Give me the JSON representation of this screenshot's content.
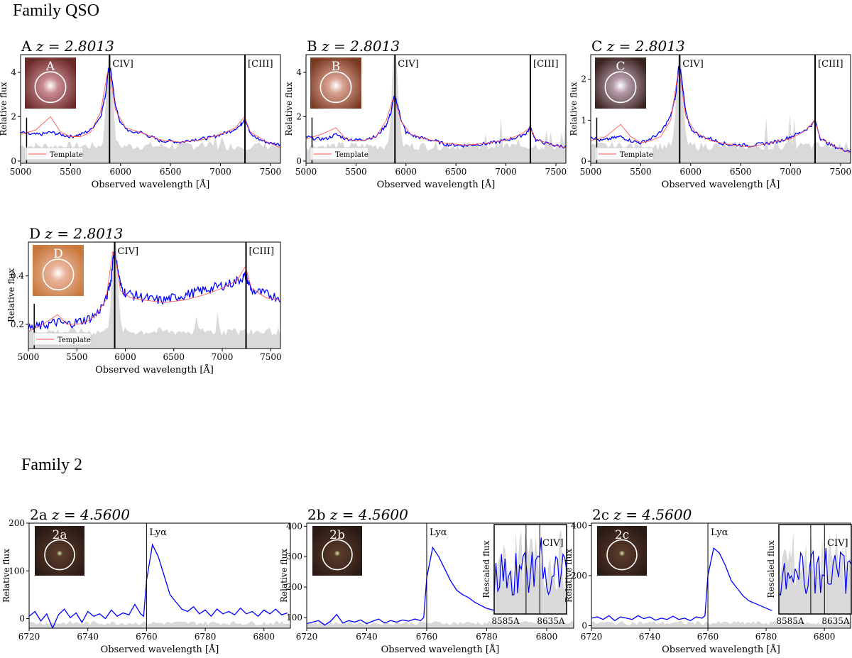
{
  "families": [
    {
      "title": "Family QSO"
    },
    {
      "title": "Family 2"
    }
  ],
  "panels": [
    {
      "label": "A $z = 2.8013$",
      "label_text": "A",
      "z_text": "z = 2.8013",
      "thumb": "A",
      "thumb_colors": [
        "#6a2a28",
        "#c88a90",
        "#ffffff"
      ],
      "lines": [
        {
          "name": "CIV]",
          "x": 5890
        },
        {
          "name": "[CIII]",
          "x": 7245
        }
      ],
      "legend": "Template",
      "xlabel": "Observed wavelength [Å]",
      "ylabel": "Relative flux"
    },
    {
      "label": "B",
      "label_text": "B",
      "z_text": "z = 2.8013",
      "thumb": "B",
      "thumb_colors": [
        "#7a3a22",
        "#d8a090",
        "#ffffff"
      ],
      "lines": [
        {
          "name": "CIV]",
          "x": 5890
        },
        {
          "name": "[CIII]",
          "x": 7245
        }
      ],
      "legend": "Template",
      "xlabel": "Observed wavelength [Å]",
      "ylabel": "Relative flux"
    },
    {
      "label": "C",
      "label_text": "C",
      "z_text": "z = 2.8013",
      "thumb": "C",
      "thumb_colors": [
        "#3a2420",
        "#b49aa8",
        "#ffffff"
      ],
      "lines": [
        {
          "name": "CIV]",
          "x": 5890
        },
        {
          "name": "[CIII]",
          "x": 7245
        }
      ],
      "legend": "Template",
      "xlabel": "Observed wavelength [Å]",
      "ylabel": "Relative flux"
    },
    {
      "label": "D",
      "label_text": "D",
      "z_text": "z = 2.8013",
      "thumb": "D",
      "thumb_colors": [
        "#c8773a",
        "#e8b39a",
        "#ffffff"
      ],
      "lines": [
        {
          "name": "CIV]",
          "x": 5890
        },
        {
          "name": "[CIII]",
          "x": 7245
        }
      ],
      "legend": "Template",
      "xlabel": "Observed wavelength [Å]",
      "ylabel": "Relative flux"
    },
    {
      "label": "2a",
      "label_text": "2a",
      "z_text": "z = 4.5600",
      "thumb": "2a",
      "thumb_colors": [
        "#2a1a14",
        "#5a3a2a",
        "#c8e8a0"
      ],
      "lines": [
        {
          "name": "Lyα",
          "x": 6760
        }
      ],
      "xlabel": "Observed wavelength [Å]",
      "ylabel": "Relative flux"
    },
    {
      "label": "2b",
      "label_text": "2b",
      "z_text": "z = 4.5600",
      "thumb": "2b",
      "thumb_colors": [
        "#2a1a14",
        "#5a3a2a",
        "#d8f0a0"
      ],
      "lines": [
        {
          "name": "Lyα",
          "x": 6760
        }
      ],
      "inset": {
        "ylabel": "Rescaled flux",
        "line": "CIV]",
        "ticks": [
          "8585A",
          "8635A"
        ]
      },
      "xlabel": "Observed wavelength [Å]",
      "ylabel": "Relative flux"
    },
    {
      "label": "2c",
      "label_text": "2c",
      "z_text": "z = 4.5600",
      "thumb": "2c",
      "thumb_colors": [
        "#2a1a14",
        "#5a3a2a",
        "#d8f0a0"
      ],
      "lines": [
        {
          "name": "Lyα",
          "x": 6760
        }
      ],
      "inset": {
        "ylabel": "Rescaled flux",
        "line": "CIV]",
        "ticks": [
          "8585A",
          "8635A"
        ]
      },
      "xlabel": "Observed wavelength [Å]",
      "ylabel": "Relative flux"
    }
  ],
  "chart_data": [
    {
      "type": "line",
      "panel": "A",
      "title": "A z = 2.8013",
      "xlim": [
        5000,
        7600
      ],
      "ylim": [
        -0.1,
        4.8
      ],
      "xticks": [
        5000,
        5500,
        6000,
        6500,
        7000,
        7500
      ],
      "yticks": [
        0,
        2,
        4
      ],
      "xlabel": "Observed wavelength [Å]",
      "ylabel": "Relative flux",
      "legend": {
        "entries": [
          "Template"
        ],
        "position": "lower-left"
      },
      "series": [
        {
          "name": "",
          "color": "#0000ff",
          "x": [
            5000,
            5100,
            5200,
            5300,
            5400,
            5500,
            5600,
            5700,
            5800,
            5850,
            5880,
            5900,
            5950,
            6000,
            6100,
            6200,
            6300,
            6400,
            6500,
            6600,
            6700,
            6800,
            6900,
            7000,
            7100,
            7200,
            7245,
            7300,
            7400,
            7500,
            7600
          ],
          "y": [
            1.3,
            1.2,
            1.2,
            1.3,
            1.2,
            1.1,
            1.2,
            1.4,
            2.0,
            3.0,
            4.2,
            4.1,
            2.5,
            1.7,
            1.3,
            1.3,
            1.1,
            0.9,
            0.9,
            0.85,
            0.95,
            1.0,
            1.05,
            1.2,
            1.35,
            1.6,
            1.95,
            1.2,
            0.95,
            0.8,
            0.75
          ]
        },
        {
          "name": "Template",
          "color": "#ff5555",
          "x": [
            5000,
            5150,
            5300,
            5400,
            5500,
            5600,
            5700,
            5800,
            5870,
            5900,
            5950,
            6050,
            6200,
            6400,
            6600,
            6800,
            7000,
            7150,
            7240,
            7300,
            7450,
            7600
          ],
          "y": [
            1.2,
            1.4,
            2.0,
            1.3,
            1.1,
            1.1,
            1.3,
            2.2,
            4.0,
            3.8,
            2.3,
            1.5,
            1.3,
            0.95,
            0.85,
            0.95,
            1.2,
            1.5,
            2.0,
            1.3,
            0.9,
            0.6
          ]
        }
      ]
    },
    {
      "type": "line",
      "panel": "B",
      "title": "B z = 2.8013",
      "xlim": [
        5000,
        7600
      ],
      "ylim": [
        -0.1,
        4.8
      ],
      "xticks": [
        5000,
        5500,
        6000,
        6500,
        7000,
        7500
      ],
      "yticks": [
        0,
        2,
        4
      ],
      "xlabel": "Observed wavelength [Å]",
      "ylabel": "Relative flux",
      "legend": {
        "entries": [
          "Template"
        ],
        "position": "lower-left"
      },
      "series": [
        {
          "name": "",
          "color": "#0000ff",
          "x": [
            5000,
            5100,
            5200,
            5300,
            5400,
            5500,
            5600,
            5700,
            5800,
            5850,
            5880,
            5900,
            5950,
            6000,
            6100,
            6200,
            6300,
            6400,
            6500,
            6600,
            6700,
            6800,
            6900,
            7000,
            7100,
            7200,
            7245,
            7300,
            7400,
            7500,
            7600
          ],
          "y": [
            1.1,
            1.0,
            1.0,
            1.2,
            1.0,
            0.95,
            1.0,
            1.1,
            1.6,
            2.2,
            2.9,
            2.8,
            1.9,
            1.3,
            1.1,
            1.0,
            0.9,
            0.75,
            0.72,
            0.7,
            0.75,
            0.78,
            0.85,
            0.95,
            1.05,
            1.25,
            1.5,
            0.95,
            0.8,
            0.7,
            0.65
          ]
        },
        {
          "name": "Template",
          "color": "#ff5555",
          "x": [
            5000,
            5150,
            5300,
            5400,
            5500,
            5600,
            5700,
            5800,
            5870,
            5900,
            5950,
            6050,
            6200,
            6400,
            6600,
            6800,
            7000,
            7150,
            7240,
            7300,
            7450,
            7600
          ],
          "y": [
            1.0,
            1.2,
            1.5,
            1.0,
            0.9,
            0.95,
            1.1,
            1.8,
            2.8,
            2.6,
            1.8,
            1.2,
            1.0,
            0.8,
            0.72,
            0.8,
            0.95,
            1.2,
            1.5,
            1.0,
            0.75,
            0.6
          ]
        }
      ]
    },
    {
      "type": "line",
      "panel": "C",
      "title": "C z = 2.8013",
      "xlim": [
        5000,
        7600
      ],
      "ylim": [
        -0.05,
        2.6
      ],
      "xticks": [
        5000,
        5500,
        6000,
        6500,
        7000,
        7500
      ],
      "yticks": [
        0,
        1,
        2
      ],
      "xlabel": "Observed wavelength [Å]",
      "ylabel": "Relative flux",
      "legend": {
        "entries": [
          "Template"
        ],
        "position": "lower-left"
      },
      "series": [
        {
          "name": "",
          "color": "#0000ff",
          "x": [
            5000,
            5100,
            5200,
            5300,
            5400,
            5500,
            5600,
            5700,
            5800,
            5850,
            5880,
            5900,
            5950,
            6000,
            6100,
            6200,
            6300,
            6400,
            6500,
            6600,
            6700,
            6800,
            6900,
            7000,
            7100,
            7200,
            7245,
            7300,
            7400,
            7500,
            7600
          ],
          "y": [
            0.6,
            0.5,
            0.55,
            0.6,
            0.5,
            0.45,
            0.55,
            0.7,
            1.1,
            1.6,
            2.3,
            2.2,
            1.2,
            0.8,
            0.6,
            0.55,
            0.45,
            0.4,
            0.4,
            0.38,
            0.42,
            0.45,
            0.5,
            0.6,
            0.7,
            0.85,
            1.0,
            0.55,
            0.4,
            0.3,
            0.25
          ]
        },
        {
          "name": "Template",
          "color": "#ff5555",
          "x": [
            5000,
            5150,
            5300,
            5400,
            5500,
            5600,
            5700,
            5800,
            5870,
            5900,
            5950,
            6050,
            6200,
            6400,
            6600,
            6800,
            7000,
            7150,
            7240,
            7300,
            7450,
            7600
          ],
          "y": [
            0.5,
            0.6,
            0.9,
            0.6,
            0.45,
            0.5,
            0.6,
            1.0,
            2.1,
            2.0,
            1.1,
            0.7,
            0.5,
            0.4,
            0.35,
            0.45,
            0.55,
            0.75,
            1.0,
            0.55,
            0.35,
            0.2
          ]
        }
      ]
    },
    {
      "type": "line",
      "panel": "D",
      "title": "D z = 2.8013",
      "xlim": [
        5000,
        7600
      ],
      "ylim": [
        0.1,
        0.54
      ],
      "xticks": [
        5000,
        5500,
        6000,
        6500,
        7000,
        7500
      ],
      "yticks": [
        0.2,
        0.4
      ],
      "xlabel": "Observed wavelength [Å]",
      "ylabel": "Relative flux",
      "legend": {
        "entries": [
          "Template"
        ],
        "position": "lower-left"
      },
      "series": [
        {
          "name": "",
          "color": "#0000ff",
          "x": [
            5000,
            5100,
            5200,
            5300,
            5400,
            5500,
            5600,
            5700,
            5800,
            5850,
            5880,
            5900,
            5950,
            6000,
            6100,
            6200,
            6300,
            6400,
            6500,
            6600,
            6700,
            6800,
            6900,
            7000,
            7100,
            7200,
            7245,
            7300,
            7400,
            7500,
            7600
          ],
          "y": [
            0.18,
            0.19,
            0.2,
            0.21,
            0.2,
            0.21,
            0.22,
            0.24,
            0.3,
            0.38,
            0.5,
            0.48,
            0.36,
            0.33,
            0.32,
            0.31,
            0.3,
            0.3,
            0.31,
            0.32,
            0.33,
            0.34,
            0.35,
            0.36,
            0.37,
            0.39,
            0.4,
            0.34,
            0.33,
            0.32,
            0.31
          ]
        },
        {
          "name": "Template",
          "color": "#ff5555",
          "x": [
            5000,
            5150,
            5300,
            5400,
            5500,
            5600,
            5700,
            5800,
            5870,
            5900,
            5950,
            6050,
            6200,
            6400,
            6600,
            6800,
            7000,
            7150,
            7240,
            7300,
            7450,
            7600
          ],
          "y": [
            0.17,
            0.2,
            0.24,
            0.2,
            0.2,
            0.21,
            0.24,
            0.3,
            0.5,
            0.47,
            0.34,
            0.31,
            0.3,
            0.29,
            0.3,
            0.32,
            0.35,
            0.38,
            0.44,
            0.35,
            0.31,
            0.3
          ]
        }
      ]
    },
    {
      "type": "line",
      "panel": "2a",
      "title": "2a z = 4.5600",
      "xlim": [
        6720,
        6809
      ],
      "ylim": [
        -20,
        200
      ],
      "xticks": [
        6720,
        6740,
        6760,
        6780,
        6800
      ],
      "yticks": [
        0,
        100,
        200
      ],
      "xlabel": "Observed wavelength [Å]",
      "ylabel": "Relative flux",
      "series": [
        {
          "name": "",
          "color": "#0000ff",
          "x": [
            6720,
            6722,
            6724,
            6726,
            6728,
            6730,
            6732,
            6734,
            6736,
            6738,
            6740,
            6742,
            6744,
            6746,
            6748,
            6750,
            6752,
            6754,
            6756,
            6758,
            6759,
            6760,
            6762,
            6764,
            6766,
            6768,
            6770,
            6772,
            6774,
            6776,
            6778,
            6780,
            6782,
            6784,
            6786,
            6788,
            6790,
            6792,
            6794,
            6796,
            6798,
            6800,
            6802,
            6804,
            6806,
            6808
          ],
          "y": [
            5,
            15,
            -5,
            10,
            -20,
            8,
            20,
            2,
            12,
            -8,
            15,
            5,
            10,
            0,
            18,
            5,
            12,
            8,
            30,
            10,
            5,
            80,
            155,
            130,
            90,
            50,
            35,
            20,
            15,
            25,
            10,
            18,
            5,
            20,
            10,
            15,
            8,
            22,
            10,
            15,
            5,
            18,
            10,
            20,
            8,
            12
          ]
        }
      ]
    },
    {
      "type": "line",
      "panel": "2b",
      "title": "2b z = 4.5600",
      "xlim": [
        6720,
        6809
      ],
      "ylim": [
        65,
        410
      ],
      "xticks": [
        6720,
        6740,
        6760,
        6780,
        6800
      ],
      "yticks": [
        100,
        200,
        300,
        400
      ],
      "xlabel": "Observed wavelength [Å]",
      "ylabel": "Relative flux",
      "series": [
        {
          "name": "",
          "color": "#0000ff",
          "x": [
            6720,
            6722,
            6724,
            6726,
            6728,
            6730,
            6732,
            6734,
            6736,
            6738,
            6740,
            6742,
            6744,
            6746,
            6748,
            6750,
            6752,
            6754,
            6756,
            6758,
            6759,
            6760,
            6762,
            6764,
            6766,
            6768,
            6770,
            6772,
            6774,
            6776,
            6778,
            6780,
            6782,
            6784
          ],
          "y": [
            80,
            85,
            90,
            75,
            88,
            110,
            82,
            90,
            85,
            92,
            80,
            88,
            95,
            82,
            90,
            85,
            92,
            88,
            95,
            90,
            100,
            230,
            330,
            300,
            260,
            220,
            190,
            175,
            165,
            150,
            140,
            130,
            125,
            120
          ]
        }
      ]
    },
    {
      "type": "line",
      "panel": "2c",
      "title": "2c z = 4.5600",
      "xlim": [
        6720,
        6809
      ],
      "ylim": [
        -10,
        410
      ],
      "xticks": [
        6720,
        6740,
        6760,
        6780,
        6800
      ],
      "yticks": [
        0,
        200,
        400
      ],
      "xlabel": "Observed wavelength [Å]",
      "ylabel": "Relative flux",
      "series": [
        {
          "name": "",
          "color": "#0000ff",
          "x": [
            6720,
            6722,
            6724,
            6726,
            6728,
            6730,
            6732,
            6734,
            6736,
            6738,
            6740,
            6742,
            6744,
            6746,
            6748,
            6750,
            6752,
            6754,
            6756,
            6758,
            6759,
            6760,
            6762,
            6764,
            6766,
            6768,
            6770,
            6772,
            6774,
            6776,
            6778,
            6780,
            6782
          ],
          "y": [
            30,
            35,
            25,
            40,
            20,
            35,
            30,
            25,
            40,
            28,
            35,
            22,
            30,
            25,
            38,
            25,
            30,
            20,
            35,
            30,
            40,
            200,
            310,
            290,
            240,
            180,
            150,
            120,
            100,
            90,
            80,
            70,
            60
          ]
        }
      ]
    }
  ]
}
